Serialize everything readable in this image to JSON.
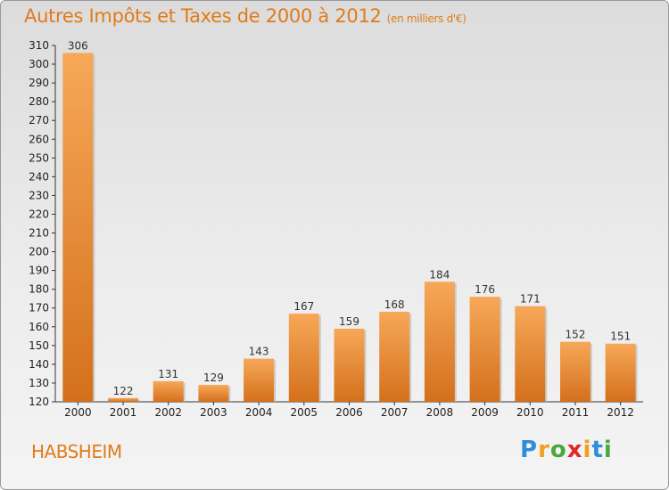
{
  "header": {
    "title": "Autres Impôts et Taxes de 2000 à 2012",
    "subtitle": "(en milliers d'€)"
  },
  "footer": {
    "commune": "HABSHEIM",
    "brand": [
      "P",
      "r",
      "o",
      "x",
      "i",
      "t",
      "i"
    ],
    "brand_colors": [
      "#2f8ed8",
      "#f0a11c",
      "#4aa83c",
      "#e2262b",
      "#f0a11c",
      "#2f8ed8",
      "#4aa83c"
    ]
  },
  "colors": {
    "bar_top": "#f6a858",
    "bar_bottom": "#d4701c",
    "title": "#e07b1a"
  },
  "chart_data": {
    "type": "bar",
    "title": "Autres Impôts et Taxes de 2000 à 2012",
    "categories": [
      "2000",
      "2001",
      "2002",
      "2003",
      "2004",
      "2005",
      "2006",
      "2007",
      "2008",
      "2009",
      "2010",
      "2011",
      "2012"
    ],
    "values": [
      306,
      122,
      131,
      129,
      143,
      167,
      159,
      168,
      184,
      176,
      171,
      152,
      151
    ],
    "ylim": [
      120,
      310
    ],
    "yticks": [
      120,
      130,
      140,
      150,
      160,
      170,
      180,
      190,
      200,
      210,
      220,
      230,
      240,
      250,
      260,
      270,
      280,
      290,
      300,
      310
    ],
    "grid": false,
    "xlabel": "",
    "ylabel": ""
  }
}
